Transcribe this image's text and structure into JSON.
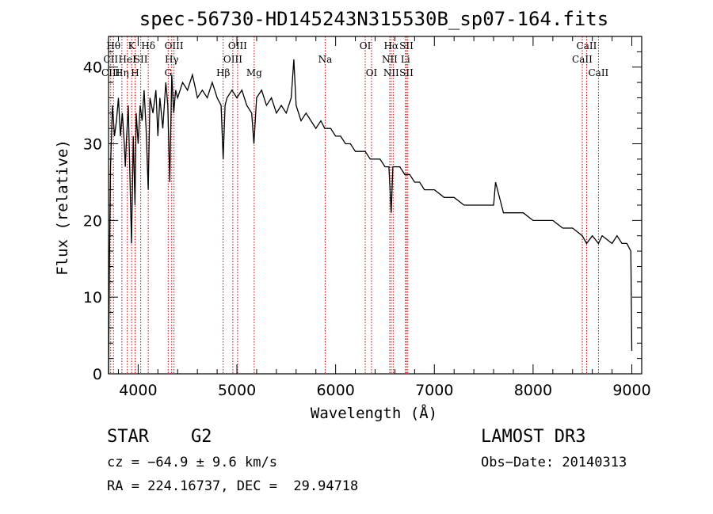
{
  "chart_data": {
    "type": "line",
    "title": "spec-56730-HD145243N315530B_sp07-164.fits",
    "xlabel": "Wavelength (Å)",
    "ylabel": "Flux (relative)",
    "xlim": [
      3700,
      9100
    ],
    "ylim": [
      0,
      44
    ],
    "xticks": [
      4000,
      5000,
      6000,
      7000,
      8000,
      9000
    ],
    "yticks": [
      0,
      10,
      20,
      30,
      40
    ],
    "grid": false,
    "series": [
      {
        "name": "flux",
        "x": [
          3700,
          3710,
          3720,
          3740,
          3760,
          3780,
          3800,
          3820,
          3840,
          3860,
          3870,
          3880,
          3900,
          3920,
          3933,
          3950,
          3968,
          3980,
          4000,
          4020,
          4040,
          4060,
          4080,
          4102,
          4120,
          4150,
          4180,
          4200,
          4220,
          4250,
          4280,
          4300,
          4320,
          4340,
          4360,
          4380,
          4400,
          4450,
          4500,
          4550,
          4600,
          4650,
          4700,
          4750,
          4800,
          4840,
          4861,
          4880,
          4900,
          4950,
          5000,
          5050,
          5100,
          5150,
          5172,
          5200,
          5250,
          5300,
          5350,
          5400,
          5450,
          5500,
          5550,
          5577,
          5600,
          5650,
          5700,
          5750,
          5800,
          5850,
          5890,
          5950,
          6000,
          6050,
          6100,
          6150,
          6200,
          6250,
          6300,
          6350,
          6400,
          6450,
          6500,
          6540,
          6563,
          6580,
          6600,
          6650,
          6700,
          6750,
          6800,
          6850,
          6900,
          6950,
          7000,
          7100,
          7200,
          7300,
          7400,
          7500,
          7600,
          7620,
          7700,
          7800,
          7900,
          8000,
          8100,
          8200,
          8300,
          8400,
          8498,
          8542,
          8600,
          8662,
          8700,
          8800,
          8850,
          8900,
          8950,
          8990,
          9000
        ],
        "y": [
          0,
          15,
          27,
          35,
          31,
          33,
          36,
          31,
          34,
          30,
          27,
          30,
          35,
          24,
          17,
          31,
          22,
          34,
          30,
          35,
          33,
          37,
          32,
          24,
          36,
          34,
          37,
          31,
          36,
          32,
          38,
          35,
          25,
          39,
          34,
          37,
          36,
          38,
          37,
          39,
          36,
          37,
          36,
          38,
          36,
          35,
          28,
          35,
          36,
          37,
          36,
          37,
          35,
          34,
          30,
          36,
          37,
          35,
          36,
          34,
          35,
          34,
          36,
          41,
          35,
          33,
          34,
          33,
          32,
          33,
          32,
          32,
          31,
          31,
          30,
          30,
          29,
          29,
          29,
          28,
          28,
          28,
          27,
          27,
          21,
          27,
          27,
          27,
          26,
          26,
          25,
          25,
          24,
          24,
          24,
          23,
          23,
          22,
          22,
          22,
          22,
          25,
          21,
          21,
          21,
          20,
          20,
          20,
          19,
          19,
          18,
          17,
          18,
          17,
          18,
          17,
          18,
          17,
          17,
          16,
          3
        ]
      }
    ],
    "line_ids": [
      {
        "w": 3722,
        "labels": [
          "",
          "CII",
          "CIII"
        ]
      },
      {
        "w": 3750,
        "labels": [
          "Hθ",
          "",
          ""
        ]
      },
      {
        "w": 3835,
        "labels": [
          "",
          "",
          "Hη"
        ]
      },
      {
        "w": 3890,
        "labels": [
          "",
          "HeI",
          ""
        ]
      },
      {
        "w": 3934,
        "labels": [
          "K",
          "",
          ""
        ]
      },
      {
        "w": 3969,
        "labels": [
          "",
          "",
          "H"
        ]
      },
      {
        "w": 4026,
        "labels": [
          "",
          "SII",
          ""
        ]
      },
      {
        "w": 4102,
        "labels": [
          "Hδ",
          "",
          ""
        ]
      },
      {
        "w": 4304,
        "labels": [
          "",
          "",
          "G"
        ]
      },
      {
        "w": 4340,
        "labels": [
          "",
          "Hγ",
          ""
        ]
      },
      {
        "w": 4363,
        "labels": [
          "OIII",
          "",
          ""
        ]
      },
      {
        "w": 4861,
        "labels": [
          "",
          "",
          "Hβ"
        ]
      },
      {
        "w": 4959,
        "labels": [
          "",
          "OIII",
          ""
        ]
      },
      {
        "w": 5007,
        "labels": [
          "OIII",
          "",
          ""
        ]
      },
      {
        "w": 5175,
        "labels": [
          "",
          "",
          "Mg"
        ]
      },
      {
        "w": 5894,
        "labels": [
          "",
          "Na",
          ""
        ]
      },
      {
        "w": 6300,
        "labels": [
          "OI",
          "",
          ""
        ]
      },
      {
        "w": 6364,
        "labels": [
          "",
          "",
          "OI"
        ]
      },
      {
        "w": 6548,
        "labels": [
          "",
          "NII",
          ""
        ]
      },
      {
        "w": 6563,
        "labels": [
          "Hα",
          "",
          "NII"
        ]
      },
      {
        "w": 6583,
        "labels": [
          "",
          "",
          ""
        ]
      },
      {
        "w": 6707,
        "labels": [
          "",
          "Li",
          ""
        ]
      },
      {
        "w": 6717,
        "labels": [
          "SII",
          "",
          "SII"
        ]
      },
      {
        "w": 6731,
        "labels": [
          "",
          "",
          ""
        ]
      },
      {
        "w": 8498,
        "labels": [
          "",
          "CaII",
          ""
        ]
      },
      {
        "w": 8542,
        "labels": [
          "CaII",
          "",
          ""
        ]
      },
      {
        "w": 8662,
        "labels": [
          "",
          "",
          "CaII"
        ]
      }
    ]
  },
  "info": {
    "class_text": "STAR    G2",
    "cz_text": "cz = −64.9 ± 9.6 km/s",
    "radec_text": "RA = 224.16737, DEC =  29.94718",
    "survey_text": "LAMOST DR3",
    "obsdate_text": "Obs−Date: 20140313"
  }
}
